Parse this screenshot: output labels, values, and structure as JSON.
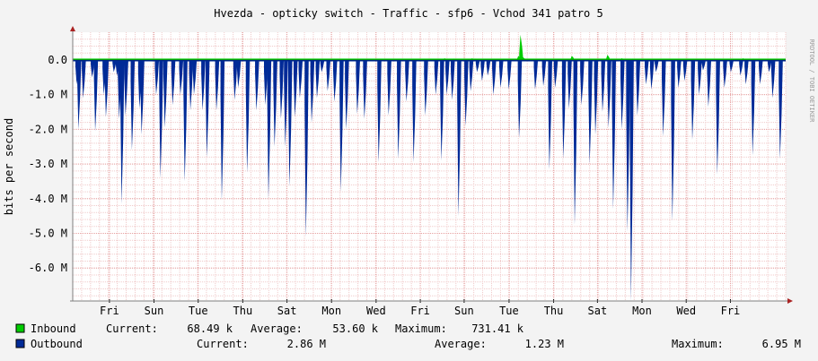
{
  "colors": {
    "background": "#f3f3f3",
    "canvas": "#ffffff",
    "inbound": "#00cc00",
    "outbound": "#002a97",
    "grid_minor": "#f0caca",
    "grid_major": "#e6a0a0",
    "axis": "#7f7f7f",
    "arrow": "#aa2222"
  },
  "watermark": "RRDTOOL / TOBI OETIKER",
  "chart_data": {
    "type": "area",
    "title": "Hvezda - opticky switch - Traffic - sfp6 - Vchod 341 patro 5",
    "ylabel": "bits per second",
    "xlabel": "",
    "ylim": [
      -6.95,
      0.8
    ],
    "y_unit": "M",
    "y_ticks": [
      0,
      -1,
      -2,
      -3,
      -4,
      -5,
      -6
    ],
    "y_tick_labels": [
      "0.0",
      "-1.0 M",
      "-2.0 M",
      "-3.0 M",
      "-4.0 M",
      "-5.0 M",
      "-6.0 M"
    ],
    "x_range": [
      0,
      200
    ],
    "x_ticks": [
      {
        "x": 10.3,
        "label": "Fri"
      },
      {
        "x": 22.8,
        "label": "Sun"
      },
      {
        "x": 35.2,
        "label": "Tue"
      },
      {
        "x": 47.7,
        "label": "Thu"
      },
      {
        "x": 60.1,
        "label": "Sat"
      },
      {
        "x": 72.6,
        "label": "Mon"
      },
      {
        "x": 85.1,
        "label": "Wed"
      },
      {
        "x": 97.5,
        "label": "Fri"
      },
      {
        "x": 109.8,
        "label": "Sun"
      },
      {
        "x": 122.4,
        "label": "Tue"
      },
      {
        "x": 134.9,
        "label": "Thu"
      },
      {
        "x": 147.2,
        "label": "Sat"
      },
      {
        "x": 159.7,
        "label": "Mon"
      },
      {
        "x": 172.1,
        "label": "Wed"
      },
      {
        "x": 184.5,
        "label": "Fri"
      }
    ],
    "grid": true,
    "legend_placement": "bottom",
    "series": [
      {
        "name": "Inbound",
        "color": "#00cc00",
        "current": "68.49 k",
        "average": "53.60 k",
        "maximum": "731.41 k",
        "spikes": [
          {
            "x": 104.3,
            "peak": 0.05
          },
          {
            "x": 107.0,
            "peak": 0.04
          },
          {
            "x": 112.0,
            "peak": 0.05
          },
          {
            "x": 113.0,
            "peak": 0.04
          },
          {
            "x": 125.0,
            "peak": 0.12
          },
          {
            "x": 125.6,
            "peak": 0.73
          },
          {
            "x": 126.3,
            "peak": 0.08
          },
          {
            "x": 140.0,
            "peak": 0.12
          },
          {
            "x": 150.0,
            "peak": 0.15
          },
          {
            "x": 154.0,
            "peak": 0.05
          },
          {
            "x": 157.0,
            "peak": 0.04
          },
          {
            "x": 188.0,
            "peak": 0.05
          }
        ]
      },
      {
        "name": "Outbound",
        "color": "#002a97",
        "current": "2.86 M",
        "average": "1.23 M",
        "maximum": "6.95 M",
        "spikes": [
          {
            "x": 1.1,
            "peak": 0.7
          },
          {
            "x": 1.6,
            "peak": 2.0
          },
          {
            "x": 2.9,
            "peak": 1.1
          },
          {
            "x": 5.4,
            "peak": 0.5
          },
          {
            "x": 6.3,
            "peak": 2.05
          },
          {
            "x": 8.7,
            "peak": 1.0
          },
          {
            "x": 9.3,
            "peak": 1.65
          },
          {
            "x": 11.5,
            "peak": 0.35
          },
          {
            "x": 12.4,
            "peak": 0.45
          },
          {
            "x": 13.0,
            "peak": 1.7
          },
          {
            "x": 13.7,
            "peak": 4.15
          },
          {
            "x": 14.8,
            "peak": 1.6
          },
          {
            "x": 16.6,
            "peak": 2.6
          },
          {
            "x": 18.7,
            "peak": 1.4
          },
          {
            "x": 19.3,
            "peak": 2.15
          },
          {
            "x": 23.4,
            "peak": 1.0
          },
          {
            "x": 24.6,
            "peak": 3.4
          },
          {
            "x": 25.8,
            "peak": 1.95
          },
          {
            "x": 28.0,
            "peak": 1.3
          },
          {
            "x": 30.2,
            "peak": 1.0
          },
          {
            "x": 31.4,
            "peak": 3.5
          },
          {
            "x": 33.0,
            "peak": 1.45
          },
          {
            "x": 34.0,
            "peak": 1.0
          },
          {
            "x": 36.4,
            "peak": 1.45
          },
          {
            "x": 37.6,
            "peak": 2.8
          },
          {
            "x": 40.3,
            "peak": 1.45
          },
          {
            "x": 41.8,
            "peak": 4.05
          },
          {
            "x": 45.4,
            "peak": 1.15
          },
          {
            "x": 46.4,
            "peak": 0.8
          },
          {
            "x": 48.9,
            "peak": 3.25
          },
          {
            "x": 51.5,
            "peak": 1.45
          },
          {
            "x": 54.0,
            "peak": 1.3
          },
          {
            "x": 54.9,
            "peak": 4.0
          },
          {
            "x": 56.6,
            "peak": 2.5
          },
          {
            "x": 58.4,
            "peak": 1.7
          },
          {
            "x": 59.6,
            "peak": 2.5
          },
          {
            "x": 60.8,
            "peak": 3.65
          },
          {
            "x": 62.3,
            "peak": 1.65
          },
          {
            "x": 63.7,
            "peak": 1.1
          },
          {
            "x": 65.4,
            "peak": 5.1
          },
          {
            "x": 67.0,
            "peak": 1.8
          },
          {
            "x": 68.5,
            "peak": 1.1
          },
          {
            "x": 69.8,
            "peak": 0.35
          },
          {
            "x": 71.5,
            "peak": 0.9
          },
          {
            "x": 73.4,
            "peak": 1.2
          },
          {
            "x": 75.2,
            "peak": 3.8
          },
          {
            "x": 76.7,
            "peak": 2.0
          },
          {
            "x": 79.8,
            "peak": 1.55
          },
          {
            "x": 81.8,
            "peak": 1.7
          },
          {
            "x": 85.8,
            "peak": 2.95
          },
          {
            "x": 88.6,
            "peak": 1.6
          },
          {
            "x": 91.3,
            "peak": 2.85
          },
          {
            "x": 93.6,
            "peak": 1.2
          },
          {
            "x": 95.6,
            "peak": 2.95
          },
          {
            "x": 98.9,
            "peak": 1.6
          },
          {
            "x": 101.8,
            "peak": 1.0
          },
          {
            "x": 103.4,
            "peak": 2.9
          },
          {
            "x": 104.9,
            "peak": 1.0
          },
          {
            "x": 106.4,
            "peak": 1.15
          },
          {
            "x": 108.2,
            "peak": 4.5
          },
          {
            "x": 110.2,
            "peak": 1.9
          },
          {
            "x": 111.6,
            "peak": 0.9
          },
          {
            "x": 113.4,
            "peak": 0.35
          },
          {
            "x": 114.8,
            "peak": 0.6
          },
          {
            "x": 116.4,
            "peak": 0.45
          },
          {
            "x": 118.0,
            "peak": 1.0
          },
          {
            "x": 120.0,
            "peak": 0.8
          },
          {
            "x": 122.3,
            "peak": 0.85
          },
          {
            "x": 125.2,
            "peak": 2.25
          },
          {
            "x": 129.7,
            "peak": 0.85
          },
          {
            "x": 132.0,
            "peak": 0.75
          },
          {
            "x": 133.7,
            "peak": 3.15
          },
          {
            "x": 135.3,
            "peak": 0.8
          },
          {
            "x": 137.6,
            "peak": 2.85
          },
          {
            "x": 139.2,
            "peak": 1.4
          },
          {
            "x": 140.8,
            "peak": 4.75
          },
          {
            "x": 142.7,
            "peak": 1.3
          },
          {
            "x": 145.0,
            "peak": 3.0
          },
          {
            "x": 146.6,
            "peak": 2.15
          },
          {
            "x": 148.6,
            "peak": 1.5
          },
          {
            "x": 150.3,
            "peak": 1.95
          },
          {
            "x": 151.6,
            "peak": 4.3
          },
          {
            "x": 154.0,
            "peak": 2.0
          },
          {
            "x": 155.6,
            "peak": 4.95
          },
          {
            "x": 156.6,
            "peak": 6.95
          },
          {
            "x": 158.4,
            "peak": 1.6
          },
          {
            "x": 160.8,
            "peak": 0.7
          },
          {
            "x": 162.3,
            "peak": 0.85
          },
          {
            "x": 163.6,
            "peak": 0.35
          },
          {
            "x": 165.6,
            "peak": 2.2
          },
          {
            "x": 168.2,
            "peak": 4.65
          },
          {
            "x": 169.9,
            "peak": 0.8
          },
          {
            "x": 171.6,
            "peak": 0.6
          },
          {
            "x": 173.8,
            "peak": 2.3
          },
          {
            "x": 175.7,
            "peak": 1.0
          },
          {
            "x": 176.8,
            "peak": 0.3
          },
          {
            "x": 178.3,
            "peak": 1.35
          },
          {
            "x": 180.8,
            "peak": 3.3
          },
          {
            "x": 182.8,
            "peak": 0.8
          },
          {
            "x": 184.6,
            "peak": 0.35
          },
          {
            "x": 187.3,
            "peak": 0.45
          },
          {
            "x": 188.8,
            "peak": 0.7
          },
          {
            "x": 190.7,
            "peak": 2.75
          },
          {
            "x": 192.8,
            "peak": 0.7
          },
          {
            "x": 195.3,
            "peak": 0.35
          },
          {
            "x": 196.3,
            "peak": 1.1
          },
          {
            "x": 198.4,
            "peak": 2.85
          }
        ]
      }
    ]
  },
  "legend": {
    "current_label": "Current:",
    "average_label": "Average:",
    "maximum_label": "Maximum:"
  }
}
